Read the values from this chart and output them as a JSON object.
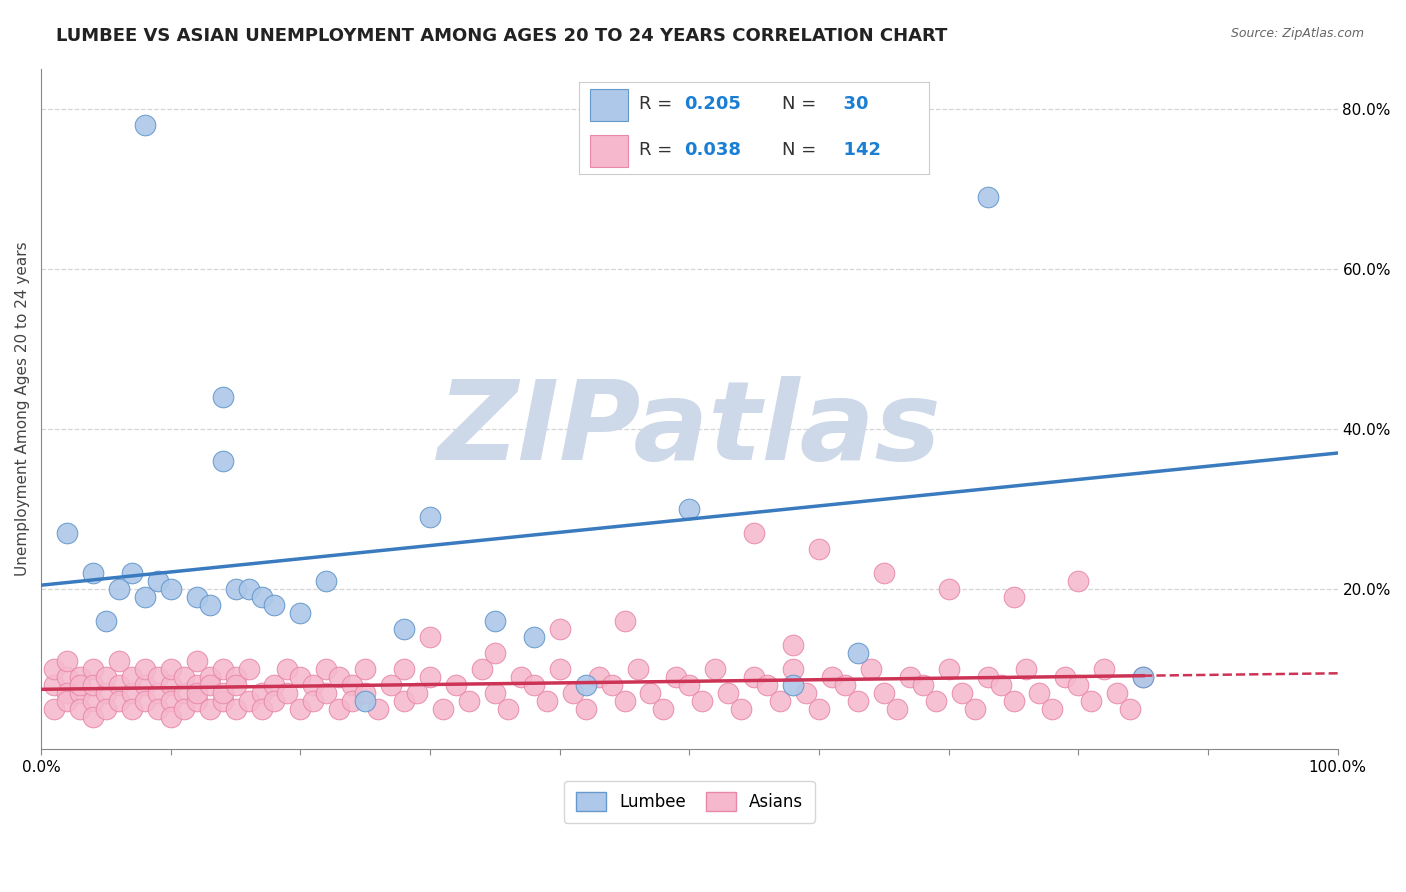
{
  "title": "LUMBEE VS ASIAN UNEMPLOYMENT AMONG AGES 20 TO 24 YEARS CORRELATION CHART",
  "source_text": "Source: ZipAtlas.com",
  "ylabel": "Unemployment Among Ages 20 to 24 years",
  "xlim": [
    0,
    1
  ],
  "ylim": [
    0,
    0.85
  ],
  "lumbee_R": 0.205,
  "lumbee_N": 30,
  "asian_R": 0.038,
  "asian_N": 142,
  "lumbee_color": "#adc8e8",
  "lumbee_edge_color": "#6699cc",
  "asian_color": "#f5b8cc",
  "asian_edge_color": "#e888aa",
  "lumbee_line_color": "#3a7bbf",
  "asian_line_color": "#cc3355",
  "grid_color": "#cccccc",
  "background_color": "#ffffff",
  "watermark_text": "ZIPatlas",
  "watermark_color": "#cdd8e8",
  "title_fontsize": 13,
  "axis_label_fontsize": 11,
  "tick_fontsize": 11,
  "lumbee_line_start_y": 0.205,
  "lumbee_line_end_y": 0.37,
  "asian_line_start_y": 0.075,
  "asian_line_end_y": 0.095,
  "lumbee_x": [
    0.02,
    0.04,
    0.05,
    0.06,
    0.07,
    0.08,
    0.08,
    0.09,
    0.1,
    0.12,
    0.13,
    0.14,
    0.14,
    0.15,
    0.16,
    0.17,
    0.18,
    0.2,
    0.22,
    0.25,
    0.28,
    0.3,
    0.35,
    0.38,
    0.42,
    0.5,
    0.58,
    0.63,
    0.73,
    0.85
  ],
  "lumbee_y": [
    0.27,
    0.22,
    0.16,
    0.2,
    0.22,
    0.78,
    0.19,
    0.21,
    0.2,
    0.19,
    0.18,
    0.44,
    0.36,
    0.2,
    0.2,
    0.19,
    0.18,
    0.17,
    0.21,
    0.06,
    0.15,
    0.29,
    0.16,
    0.14,
    0.08,
    0.3,
    0.08,
    0.12,
    0.69,
    0.09
  ],
  "asian_x": [
    0.01,
    0.01,
    0.01,
    0.02,
    0.02,
    0.02,
    0.02,
    0.03,
    0.03,
    0.03,
    0.03,
    0.04,
    0.04,
    0.04,
    0.04,
    0.05,
    0.05,
    0.05,
    0.06,
    0.06,
    0.06,
    0.07,
    0.07,
    0.07,
    0.08,
    0.08,
    0.08,
    0.09,
    0.09,
    0.09,
    0.1,
    0.1,
    0.1,
    0.1,
    0.11,
    0.11,
    0.11,
    0.12,
    0.12,
    0.12,
    0.12,
    0.13,
    0.13,
    0.13,
    0.14,
    0.14,
    0.14,
    0.15,
    0.15,
    0.15,
    0.16,
    0.16,
    0.17,
    0.17,
    0.18,
    0.18,
    0.19,
    0.19,
    0.2,
    0.2,
    0.21,
    0.21,
    0.22,
    0.22,
    0.23,
    0.23,
    0.24,
    0.24,
    0.25,
    0.25,
    0.26,
    0.27,
    0.28,
    0.28,
    0.29,
    0.3,
    0.31,
    0.32,
    0.33,
    0.34,
    0.35,
    0.36,
    0.37,
    0.38,
    0.39,
    0.4,
    0.41,
    0.42,
    0.43,
    0.44,
    0.45,
    0.46,
    0.47,
    0.48,
    0.49,
    0.5,
    0.51,
    0.52,
    0.53,
    0.54,
    0.55,
    0.56,
    0.57,
    0.58,
    0.59,
    0.6,
    0.61,
    0.62,
    0.63,
    0.64,
    0.65,
    0.66,
    0.67,
    0.68,
    0.69,
    0.7,
    0.71,
    0.72,
    0.73,
    0.74,
    0.75,
    0.76,
    0.77,
    0.78,
    0.79,
    0.8,
    0.81,
    0.82,
    0.83,
    0.84,
    0.85,
    0.55,
    0.6,
    0.65,
    0.7,
    0.75,
    0.8,
    0.58,
    0.3,
    0.35,
    0.4,
    0.45
  ],
  "asian_y": [
    0.08,
    0.1,
    0.05,
    0.09,
    0.07,
    0.06,
    0.11,
    0.07,
    0.09,
    0.05,
    0.08,
    0.06,
    0.1,
    0.08,
    0.04,
    0.07,
    0.09,
    0.05,
    0.08,
    0.06,
    0.11,
    0.07,
    0.05,
    0.09,
    0.08,
    0.06,
    0.1,
    0.07,
    0.05,
    0.09,
    0.08,
    0.06,
    0.1,
    0.04,
    0.07,
    0.09,
    0.05,
    0.08,
    0.06,
    0.11,
    0.07,
    0.05,
    0.09,
    0.08,
    0.06,
    0.1,
    0.07,
    0.05,
    0.09,
    0.08,
    0.06,
    0.1,
    0.07,
    0.05,
    0.08,
    0.06,
    0.1,
    0.07,
    0.05,
    0.09,
    0.08,
    0.06,
    0.1,
    0.07,
    0.05,
    0.09,
    0.08,
    0.06,
    0.1,
    0.07,
    0.05,
    0.08,
    0.06,
    0.1,
    0.07,
    0.09,
    0.05,
    0.08,
    0.06,
    0.1,
    0.07,
    0.05,
    0.09,
    0.08,
    0.06,
    0.1,
    0.07,
    0.05,
    0.09,
    0.08,
    0.06,
    0.1,
    0.07,
    0.05,
    0.09,
    0.08,
    0.06,
    0.1,
    0.07,
    0.05,
    0.09,
    0.08,
    0.06,
    0.1,
    0.07,
    0.05,
    0.09,
    0.08,
    0.06,
    0.1,
    0.07,
    0.05,
    0.09,
    0.08,
    0.06,
    0.1,
    0.07,
    0.05,
    0.09,
    0.08,
    0.06,
    0.1,
    0.07,
    0.05,
    0.09,
    0.08,
    0.06,
    0.1,
    0.07,
    0.05,
    0.09,
    0.27,
    0.25,
    0.22,
    0.2,
    0.19,
    0.21,
    0.13,
    0.14,
    0.12,
    0.15,
    0.16
  ]
}
